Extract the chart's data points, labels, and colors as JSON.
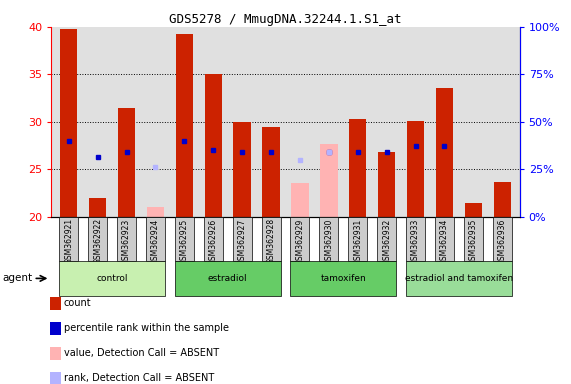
{
  "title": "GDS5278 / MmugDNA.32244.1.S1_at",
  "samples": [
    "GSM362921",
    "GSM362922",
    "GSM362923",
    "GSM362924",
    "GSM362925",
    "GSM362926",
    "GSM362927",
    "GSM362928",
    "GSM362929",
    "GSM362930",
    "GSM362931",
    "GSM362932",
    "GSM362933",
    "GSM362934",
    "GSM362935",
    "GSM362936"
  ],
  "bar_values": [
    39.8,
    22.0,
    31.5,
    null,
    39.2,
    35.0,
    30.0,
    29.5,
    null,
    null,
    30.3,
    26.8,
    30.1,
    33.6,
    21.5,
    23.7
  ],
  "bar_absent_values": [
    null,
    null,
    null,
    21.1,
    null,
    null,
    null,
    null,
    23.6,
    27.7,
    null,
    null,
    null,
    null,
    null,
    null
  ],
  "rank_values": [
    28.0,
    26.3,
    26.8,
    null,
    28.0,
    27.0,
    26.8,
    26.8,
    null,
    26.8,
    26.8,
    26.8,
    27.5,
    27.5,
    null,
    null
  ],
  "rank_absent_values": [
    null,
    null,
    null,
    25.3,
    null,
    null,
    null,
    null,
    26.0,
    26.8,
    null,
    null,
    null,
    null,
    null,
    null
  ],
  "ylim": [
    20,
    40
  ],
  "yticks": [
    20,
    25,
    30,
    35,
    40
  ],
  "right_yticks_percent": [
    0,
    25,
    50,
    75,
    100
  ],
  "bar_color": "#cc2200",
  "bar_absent_color": "#ffb3b3",
  "rank_color": "#0000cc",
  "rank_absent_color": "#b3b3ff",
  "bg_color": "#e0e0e0",
  "groups": [
    {
      "name": "control",
      "indices": [
        0,
        1,
        2,
        3
      ],
      "color": "#c8f0b0"
    },
    {
      "name": "estradiol",
      "indices": [
        4,
        5,
        6,
        7
      ],
      "color": "#66cc66"
    },
    {
      "name": "tamoxifen",
      "indices": [
        8,
        9,
        10,
        11
      ],
      "color": "#66cc66"
    },
    {
      "name": "estradiol and tamoxifen",
      "indices": [
        12,
        13,
        14,
        15
      ],
      "color": "#99dd99"
    }
  ],
  "legend_items": [
    {
      "label": "count",
      "color": "#cc2200"
    },
    {
      "label": "percentile rank within the sample",
      "color": "#0000cc"
    },
    {
      "label": "value, Detection Call = ABSENT",
      "color": "#ffb3b3"
    },
    {
      "label": "rank, Detection Call = ABSENT",
      "color": "#b3b3ff"
    }
  ]
}
